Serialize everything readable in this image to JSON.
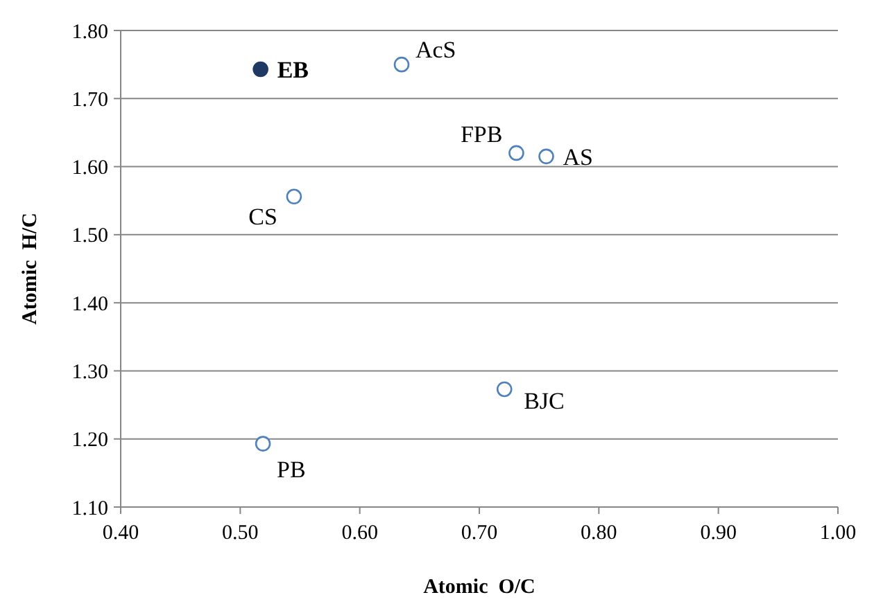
{
  "chart_data": {
    "type": "scatter",
    "xlabel": "Atomic  O/C",
    "ylabel": "Atomic  H/C",
    "series": [
      {
        "color": "#4f81bd",
        "x": [
          0.635,
          0.731,
          0.756,
          0.545,
          0.721,
          0.519
        ],
        "values": [
          1.75,
          1.62,
          1.615,
          1.556,
          1.273,
          1.193
        ]
      },
      {
        "color": "#1f3864",
        "x": [
          0.517
        ],
        "values": [
          1.743
        ]
      }
    ],
    "annotations": [
      {
        "text": "AcS",
        "x": 0.635,
        "y": 1.75
      },
      {
        "text": "FPB",
        "x": 0.731,
        "y": 1.62
      },
      {
        "text": "AS",
        "x": 0.756,
        "y": 1.615
      },
      {
        "text": "CS",
        "x": 0.545,
        "y": 1.556
      },
      {
        "text": "BJC",
        "x": 0.721,
        "y": 1.273
      },
      {
        "text": "PB",
        "x": 0.519,
        "y": 1.193
      },
      {
        "text": "EB",
        "x": 0.517,
        "y": 1.743
      }
    ],
    "xlim": [
      0.4,
      1.0
    ],
    "xticks": [
      {
        "value": 0.4,
        "label": "0.40"
      },
      {
        "value": 0.5,
        "label": "0.50"
      },
      {
        "value": 0.6,
        "label": "0.60"
      },
      {
        "value": 0.7,
        "label": "0.70"
      },
      {
        "value": 0.8,
        "label": "0.80"
      },
      {
        "value": 0.9,
        "label": "0.90"
      },
      {
        "value": 1.0,
        "label": "1.00"
      }
    ],
    "ylim": [
      1.1,
      1.8
    ],
    "yticks": [
      {
        "value": 1.1,
        "label": "1.10"
      },
      {
        "value": 1.2,
        "label": "1.20"
      },
      {
        "value": 1.3,
        "label": "1.30"
      },
      {
        "value": 1.4,
        "label": "1.40"
      },
      {
        "value": 1.5,
        "label": "1.50"
      },
      {
        "value": 1.6,
        "label": "1.60"
      },
      {
        "value": 1.7,
        "label": "1.70"
      },
      {
        "value": 1.8,
        "label": "1.80"
      }
    ],
    "grid": "y",
    "marker": "circle"
  }
}
